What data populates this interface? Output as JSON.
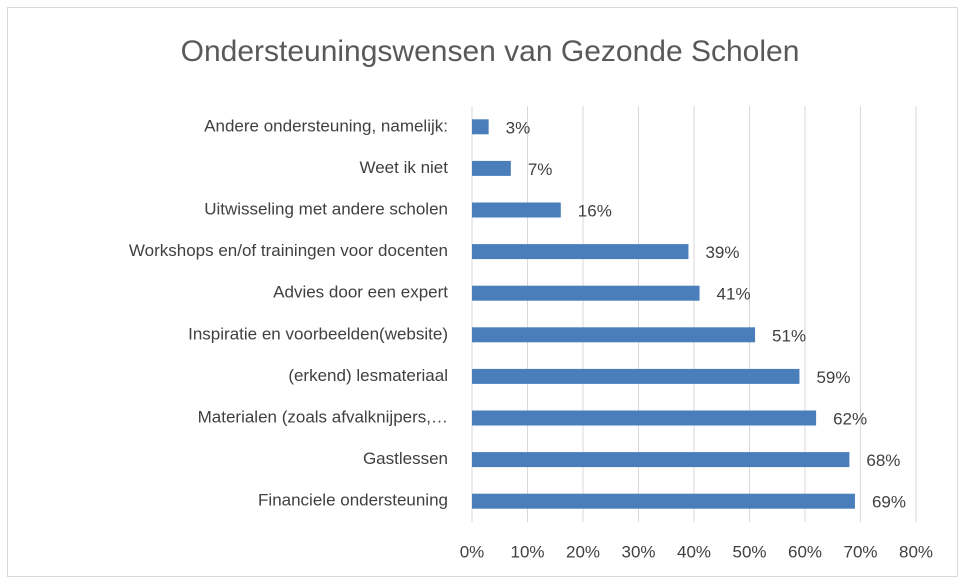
{
  "chart_data": {
    "type": "bar",
    "orientation": "horizontal",
    "title": "Ondersteuningswensen van Gezonde Scholen",
    "categories": [
      "Andere ondersteuning, namelijk:",
      "Weet ik niet",
      "Uitwisseling met andere scholen",
      "Workshops en/of trainingen voor docenten",
      "Advies door een expert",
      "Inspiratie en voorbeelden(website)",
      "(erkend) lesmateriaal",
      "Materialen (zoals afvalknijpers,…",
      "Gastlessen",
      "Financiele ondersteuning"
    ],
    "values": [
      3,
      7,
      16,
      39,
      41,
      51,
      59,
      62,
      68,
      69
    ],
    "value_labels": [
      "3%",
      "7%",
      "16%",
      "39%",
      "41%",
      "51%",
      "59%",
      "62%",
      "68%",
      "69%"
    ],
    "color": "#4a7ebb",
    "xlim": [
      0,
      80
    ],
    "xticks": [
      {
        "value": 0,
        "label": "0%"
      },
      {
        "value": 10,
        "label": "10%"
      },
      {
        "value": 20,
        "label": "20%"
      },
      {
        "value": 30,
        "label": "30%"
      },
      {
        "value": 40,
        "label": "40%"
      },
      {
        "value": 50,
        "label": "50%"
      },
      {
        "value": 60,
        "label": "60%"
      },
      {
        "value": 70,
        "label": "70%"
      },
      {
        "value": 80,
        "label": "80%"
      }
    ],
    "grid": true
  }
}
